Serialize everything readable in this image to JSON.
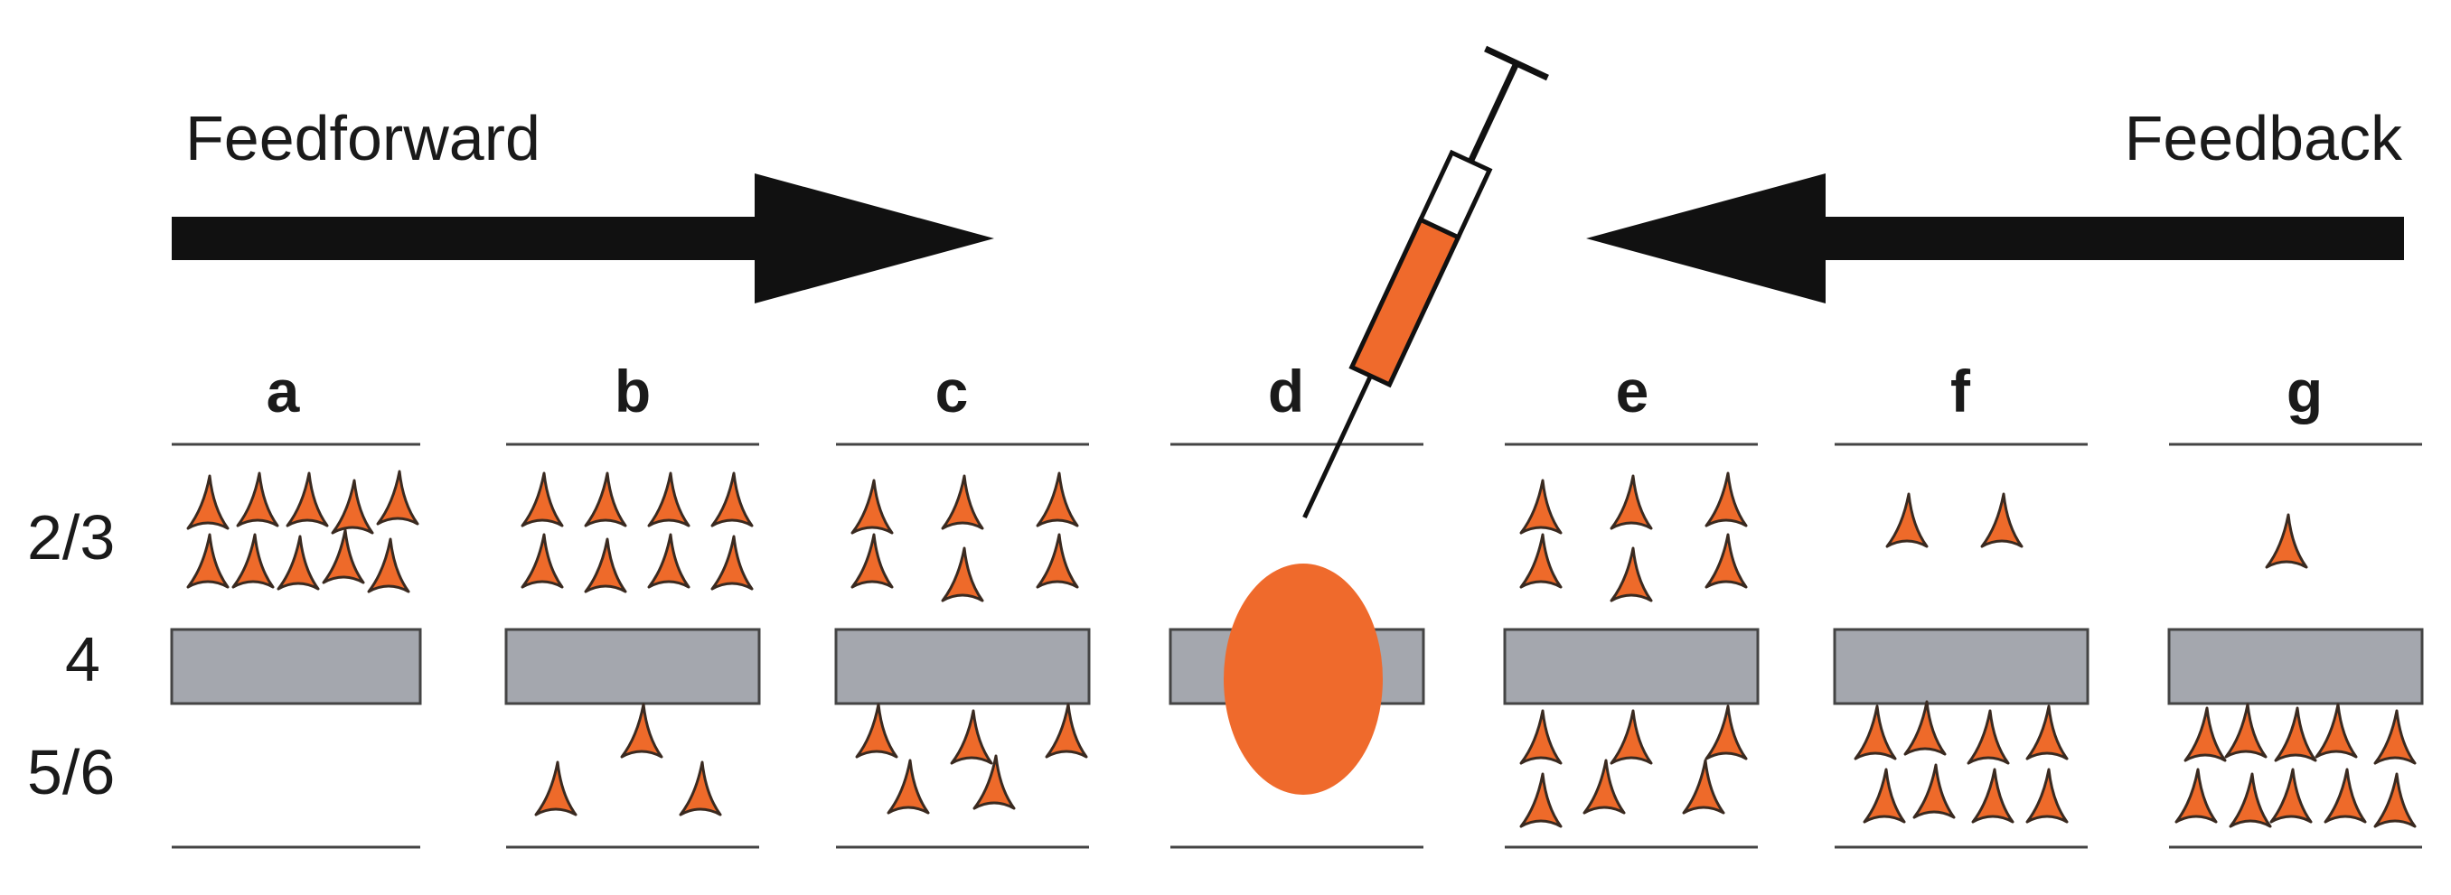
{
  "title_labels": {
    "feedforward": "Feedforward",
    "feedback": "Feedback"
  },
  "columns": [
    {
      "label": "a",
      "layer23_neurons": 10,
      "layer56_neurons": 0
    },
    {
      "label": "b",
      "layer23_neurons": 8,
      "layer56_neurons": 3
    },
    {
      "label": "c",
      "layer23_neurons": 6,
      "layer56_neurons": 5
    },
    {
      "label": "d",
      "layer23_neurons": 0,
      "layer56_neurons": 0,
      "injection": true
    },
    {
      "label": "e",
      "layer23_neurons": 6,
      "layer56_neurons": 6
    },
    {
      "label": "f",
      "layer23_neurons": 2,
      "layer56_neurons": 8
    },
    {
      "label": "g",
      "layer23_neurons": 1,
      "layer56_neurons": 10
    }
  ],
  "layers": [
    {
      "label": "2/3"
    },
    {
      "label": "4"
    },
    {
      "label": "5/6"
    }
  ],
  "colors": {
    "neuron_fill": "#ee6a2a",
    "neuron_stroke": "#3a2a20",
    "layer4_fill": "#a4a7ae",
    "arrow": "#111111",
    "injection_site": "#ef6a2c"
  },
  "icons": {
    "syringe": "syringe-icon",
    "neuron": "pyramidal-neuron-icon"
  }
}
